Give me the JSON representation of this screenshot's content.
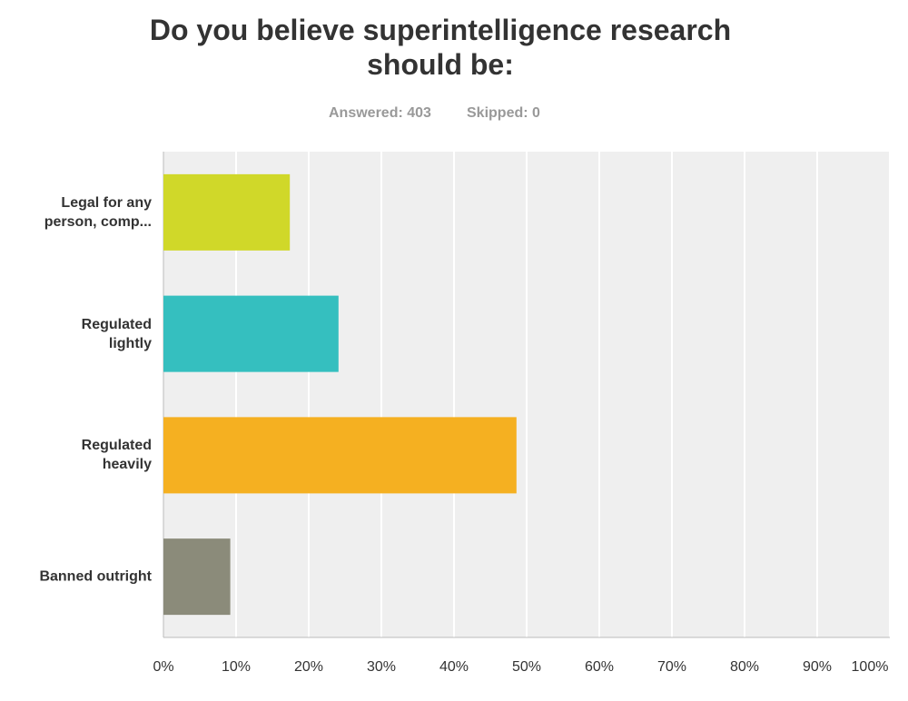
{
  "chart_data": {
    "type": "hbar",
    "title": "Do you believe superintelligence research\nshould be:",
    "answered": "Answered: 403",
    "skipped": "Skipped: 0",
    "categories": [
      "Legal for any\nperson, comp...",
      "Regulated\nlightly",
      "Regulated\nheavily",
      "Banned outright"
    ],
    "values": [
      17.4,
      24.1,
      48.6,
      9.2
    ],
    "colors": [
      "#d0d829",
      "#35bfbf",
      "#f5b021",
      "#8b8b7a"
    ],
    "xlim": [
      0,
      100
    ],
    "xticks": [
      {
        "value": 0,
        "label": "0%"
      },
      {
        "value": 10,
        "label": "10%"
      },
      {
        "value": 20,
        "label": "20%"
      },
      {
        "value": 30,
        "label": "30%"
      },
      {
        "value": 40,
        "label": "40%"
      },
      {
        "value": 50,
        "label": "50%"
      },
      {
        "value": 60,
        "label": "60%"
      },
      {
        "value": 70,
        "label": "70%"
      },
      {
        "value": 80,
        "label": "80%"
      },
      {
        "value": 90,
        "label": "90%"
      },
      {
        "value": 100,
        "label": "100%"
      }
    ],
    "grid": true
  }
}
